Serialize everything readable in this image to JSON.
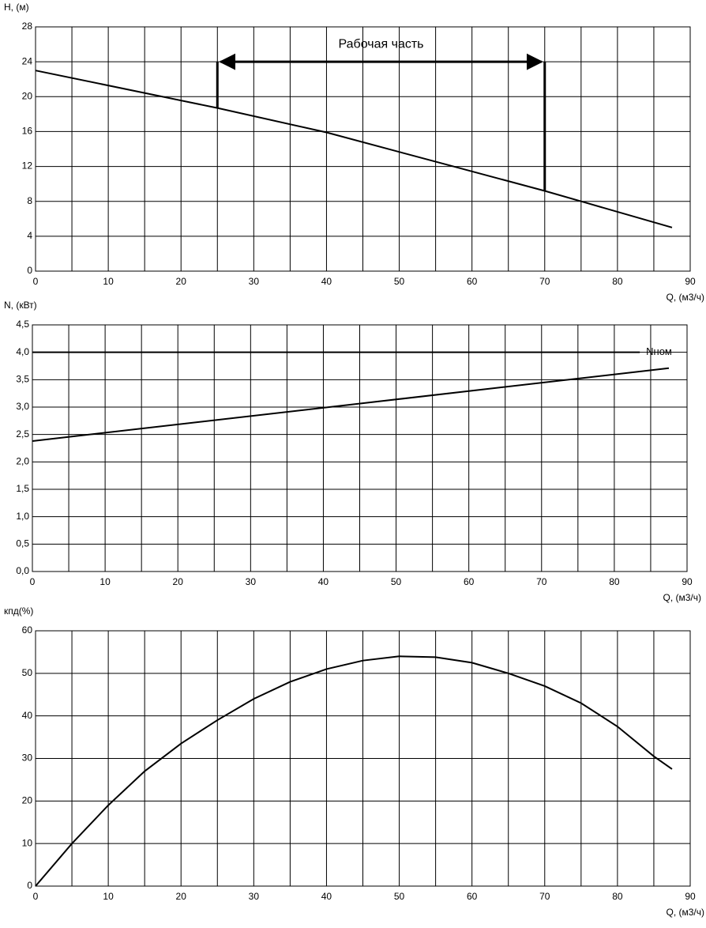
{
  "chart_data": [
    {
      "type": "line",
      "y_label": "H, (м)",
      "x_label": "Q, (м3/ч)",
      "x": [
        0,
        25,
        40,
        57,
        70,
        75,
        87.5
      ],
      "values": [
        23,
        18.7,
        15.9,
        12.1,
        9.2,
        8,
        5
      ],
      "color": "#000000",
      "xlim": [
        0,
        90
      ],
      "xticks": [
        0,
        10,
        20,
        30,
        40,
        50,
        60,
        70,
        80,
        90
      ],
      "xminor": [
        5,
        15,
        25,
        35,
        45,
        55,
        65,
        75,
        85
      ],
      "ylim": [
        0,
        28
      ],
      "yticks": [
        0,
        4,
        8,
        12,
        16,
        20,
        24,
        28
      ],
      "grid": true,
      "annotation": {
        "text": "Рабочая часть",
        "range": [
          25,
          70
        ],
        "level": 24
      }
    },
    {
      "type": "line",
      "y_label": "N, (кВт)",
      "x_label": "Q, (м3/ч)",
      "x": [
        0,
        87.5
      ],
      "values": [
        2.38,
        3.71
      ],
      "color": "#000000",
      "xlim": [
        0,
        90
      ],
      "xticks": [
        0,
        10,
        20,
        30,
        40,
        50,
        60,
        70,
        80,
        90
      ],
      "xminor": [
        5,
        15,
        25,
        35,
        45,
        55,
        65,
        75,
        85
      ],
      "ylim": [
        0,
        4.5
      ],
      "yticks": [
        {
          "value": 0,
          "label": "0,0"
        },
        {
          "value": 0.5,
          "label": "0,5"
        },
        {
          "value": 1,
          "label": "1,0"
        },
        {
          "value": 1.5,
          "label": "1,5"
        },
        {
          "value": 2,
          "label": "2,0"
        },
        {
          "value": 2.5,
          "label": "2,5"
        },
        {
          "value": 3,
          "label": "3,0"
        },
        {
          "value": 3.5,
          "label": "3,5"
        },
        {
          "value": 4,
          "label": "4,0"
        },
        {
          "value": 4.5,
          "label": "4,5"
        }
      ],
      "grid": true,
      "reference_line": {
        "label": "Nном",
        "value": 4,
        "x_end": 83.5
      }
    },
    {
      "type": "line",
      "y_label": "кпд(%)",
      "x_label": "Q, (м3/ч)",
      "x": [
        0,
        5,
        10,
        15,
        20,
        25,
        30,
        35,
        40,
        45,
        50,
        55,
        60,
        65,
        70,
        75,
        80,
        85,
        87.5
      ],
      "values": [
        0,
        10,
        19,
        27,
        33.5,
        39,
        44,
        48,
        51,
        53,
        54,
        53.8,
        52.5,
        50,
        47,
        43,
        37.5,
        30.5,
        27.5
      ],
      "color": "#000000",
      "xlim": [
        0,
        90
      ],
      "xticks": [
        0,
        10,
        20,
        30,
        40,
        50,
        60,
        70,
        80,
        90
      ],
      "xminor": [
        5,
        15,
        25,
        35,
        45,
        55,
        65,
        75,
        85
      ],
      "ylim": [
        0,
        60
      ],
      "yticks": [
        0,
        10,
        20,
        30,
        40,
        50,
        60
      ],
      "grid": true
    }
  ]
}
